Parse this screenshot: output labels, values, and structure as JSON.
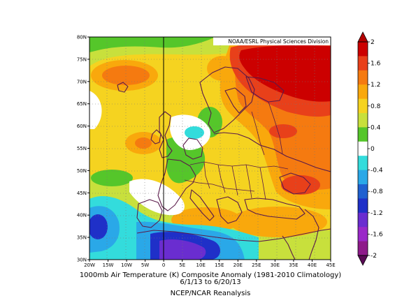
{
  "map": {
    "credit": "NOAA/ESRL Physical Sciences Division",
    "lon_labels": [
      "20W",
      "15W",
      "10W",
      "5W",
      "0",
      "5E",
      "10E",
      "15E",
      "20E",
      "25E",
      "30E",
      "35E",
      "40E",
      "45E"
    ],
    "lat_labels": [
      "30N",
      "35N",
      "40N",
      "45N",
      "50N",
      "55N",
      "60N",
      "65N",
      "70N",
      "75N",
      "80N"
    ],
    "extent": {
      "lon": [
        -20,
        45
      ],
      "lat": [
        30,
        80
      ]
    }
  },
  "caption": {
    "line1": "1000mb Air Temperature (K) Composite Anomaly (1981-2010 Climatology)",
    "line2": "6/1/13  to 6/20/13",
    "line3": "NCEP/NCAR Reanalysis"
  },
  "colorbar": {
    "labels": [
      "2",
      "1.6",
      "1.2",
      "0.8",
      "0.4",
      "0",
      "-0.4",
      "-0.8",
      "-1.2",
      "-1.6",
      "-2"
    ],
    "colors": [
      "#cc0000",
      "#e8401a",
      "#f57a10",
      "#f9a80c",
      "#f5d320",
      "#c8e03c",
      "#55c62a",
      "#ffffff",
      "#33dcdc",
      "#2aa8e8",
      "#1f60d0",
      "#1f30c8",
      "#6a2dd0",
      "#9a28c8",
      "#8e1a8a"
    ]
  },
  "chart_data": {
    "type": "heatmap",
    "title": "1000mb Air Temperature (K) Composite Anomaly (1981-2010 Climatology)",
    "subtitle": "6/1/13  to 6/20/13",
    "xlabel": "",
    "ylabel": "",
    "x_range": [
      -20,
      45
    ],
    "y_range": [
      30,
      80
    ],
    "value_range": [
      -2,
      2
    ],
    "legend_placement": "right"
  }
}
